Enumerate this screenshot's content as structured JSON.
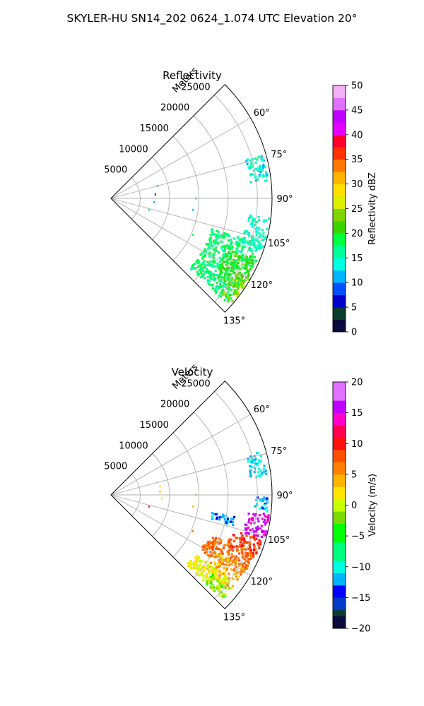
{
  "figure": {
    "suptitle": "SKYLER-HU  SN14_202  0624_1.074 UTC Elevation 20°"
  },
  "chart_data": [
    {
      "type": "heatmap",
      "projection": "polar-sector",
      "title": "Reflectivity",
      "range_label": "Meters",
      "azimuth_range_deg": [
        45,
        135
      ],
      "azimuth_ticks": [
        60,
        75,
        90,
        105,
        120,
        135
      ],
      "azimuth_tick_labels": [
        "60°",
        "75°",
        "90°",
        "105°",
        "120°",
        "135°"
      ],
      "range_max_m": 27500,
      "range_ticks": [
        5000,
        10000,
        15000,
        20000,
        25000
      ],
      "range_tick_labels": [
        "5000",
        "10000",
        "15000",
        "20000",
        "25000"
      ],
      "grid": true,
      "colorbar": {
        "label": "Reflectivity dBZ",
        "range": [
          0,
          50
        ],
        "ticks": [
          0,
          5,
          10,
          15,
          20,
          25,
          30,
          35,
          40,
          45,
          50
        ],
        "tick_labels": [
          "0",
          "5",
          "10",
          "15",
          "20",
          "25",
          "30",
          "35",
          "40",
          "45",
          "50"
        ]
      },
      "echo_regions": [
        {
          "az": [
            107,
            132
          ],
          "range": [
            18000,
            27000
          ],
          "value": 17
        },
        {
          "az": [
            113,
            126
          ],
          "range": [
            22000,
            27000
          ],
          "value": 21
        },
        {
          "az": [
            120,
            131
          ],
          "range": [
            25000,
            27300
          ],
          "value": 24
        },
        {
          "az": [
            97,
            110
          ],
          "range": [
            23500,
            27300
          ],
          "value": 15
        },
        {
          "az": [
            74,
            84
          ],
          "range": [
            24000,
            27000
          ],
          "value": 14
        }
      ],
      "scattered_gates": [
        {
          "az": 75,
          "r": 8200,
          "value": 10
        },
        {
          "az": 85,
          "r": 7600,
          "value": 3
        },
        {
          "az": 90,
          "r": 14500,
          "value": 12
        },
        {
          "az": 95,
          "r": 7400,
          "value": 11
        },
        {
          "az": 98,
          "r": 14100,
          "value": 11
        },
        {
          "az": 107,
          "r": 6800,
          "value": 13
        },
        {
          "az": 114,
          "r": 15300,
          "value": 18
        }
      ]
    },
    {
      "type": "heatmap",
      "projection": "polar-sector",
      "title": "Velocity",
      "range_label": "Meters",
      "azimuth_range_deg": [
        45,
        135
      ],
      "azimuth_ticks": [
        60,
        75,
        90,
        105,
        120,
        135
      ],
      "azimuth_tick_labels": [
        "60°",
        "75°",
        "90°",
        "105°",
        "120°",
        "135°"
      ],
      "range_max_m": 27500,
      "range_ticks": [
        5000,
        10000,
        15000,
        20000,
        25000
      ],
      "range_tick_labels": [
        "5000",
        "10000",
        "15000",
        "20000",
        "25000"
      ],
      "grid": true,
      "colorbar": {
        "label": "Velocity (m/s)",
        "range": [
          -20,
          20
        ],
        "ticks": [
          -20,
          -15,
          -10,
          -5,
          0,
          5,
          10,
          15,
          20
        ],
        "tick_labels": [
          "−20",
          "−15",
          "−10",
          "−5",
          "0",
          "5",
          "10",
          "15",
          "20"
        ]
      },
      "echo_regions": [
        {
          "az": [
            97,
            106
          ],
          "range": [
            23500,
            27300
          ],
          "value": 15
        },
        {
          "az": [
            106,
            114
          ],
          "range": [
            21500,
            27000
          ],
          "value": 9
        },
        {
          "az": [
            112,
            122
          ],
          "range": [
            18000,
            26500
          ],
          "value": 7
        },
        {
          "az": [
            118,
            129
          ],
          "range": [
            20500,
            26000
          ],
          "value": 4
        },
        {
          "az": [
            125,
            133
          ],
          "range": [
            17500,
            25000
          ],
          "value": 1
        },
        {
          "az": [
            128,
            133
          ],
          "range": [
            22000,
            26000
          ],
          "value": -2
        },
        {
          "az": [
            74,
            83
          ],
          "range": [
            24000,
            27000
          ],
          "value": -11
        },
        {
          "az": [
            91,
            96
          ],
          "range": [
            24500,
            27000
          ],
          "value": -12
        },
        {
          "az": [
            100,
            104
          ],
          "range": [
            17500,
            21500
          ],
          "value": -12
        }
      ],
      "scattered_gates": [
        {
          "az": 75,
          "r": 8200,
          "value": 1
        },
        {
          "az": 80,
          "r": 8500,
          "value": 2
        },
        {
          "az": 86,
          "r": 8400,
          "value": 3
        },
        {
          "az": 90,
          "r": 14500,
          "value": 4
        },
        {
          "az": 94,
          "r": 8700,
          "value": 2
        },
        {
          "az": 98,
          "r": 14100,
          "value": 3
        },
        {
          "az": 107,
          "r": 6800,
          "value": 10
        },
        {
          "az": 114,
          "r": 15300,
          "value": 6
        }
      ]
    }
  ]
}
